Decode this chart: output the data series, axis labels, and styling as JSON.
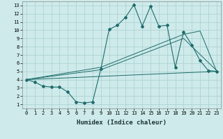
{
  "xlabel": "Humidex (Indice chaleur)",
  "background_color": "#ceeaea",
  "line_color": "#1e6b6b",
  "grid_color": "#aacfcf",
  "xlim": [
    -0.5,
    23.5
  ],
  "ylim": [
    0.5,
    13.5
  ],
  "xticks": [
    0,
    1,
    2,
    3,
    4,
    5,
    6,
    7,
    8,
    9,
    10,
    11,
    12,
    13,
    14,
    15,
    16,
    17,
    18,
    19,
    20,
    21,
    22,
    23
  ],
  "yticks": [
    1,
    2,
    3,
    4,
    5,
    6,
    7,
    8,
    9,
    10,
    11,
    12,
    13
  ],
  "line1_x": [
    0,
    1,
    2,
    3,
    4,
    5,
    6,
    7,
    8,
    9,
    10,
    11,
    12,
    13,
    14,
    15,
    16,
    17,
    18,
    19,
    20,
    21,
    22,
    23
  ],
  "line1_y": [
    4.0,
    3.7,
    3.2,
    3.1,
    3.1,
    2.5,
    1.3,
    1.15,
    1.3,
    5.3,
    10.1,
    10.6,
    11.6,
    13.1,
    10.5,
    12.9,
    10.5,
    10.6,
    5.5,
    9.8,
    8.2,
    6.3,
    5.1,
    5.0
  ],
  "line2_x": [
    0,
    23
  ],
  "line2_y": [
    4.0,
    5.0
  ],
  "line3_x": [
    0,
    9,
    19,
    21,
    23
  ],
  "line3_y": [
    4.0,
    5.5,
    9.5,
    9.9,
    5.0
  ],
  "line4_x": [
    0,
    9,
    19,
    23
  ],
  "line4_y": [
    4.0,
    5.2,
    9.0,
    5.1
  ],
  "xlabel_fontsize": 6.5,
  "tick_fontsize": 5
}
